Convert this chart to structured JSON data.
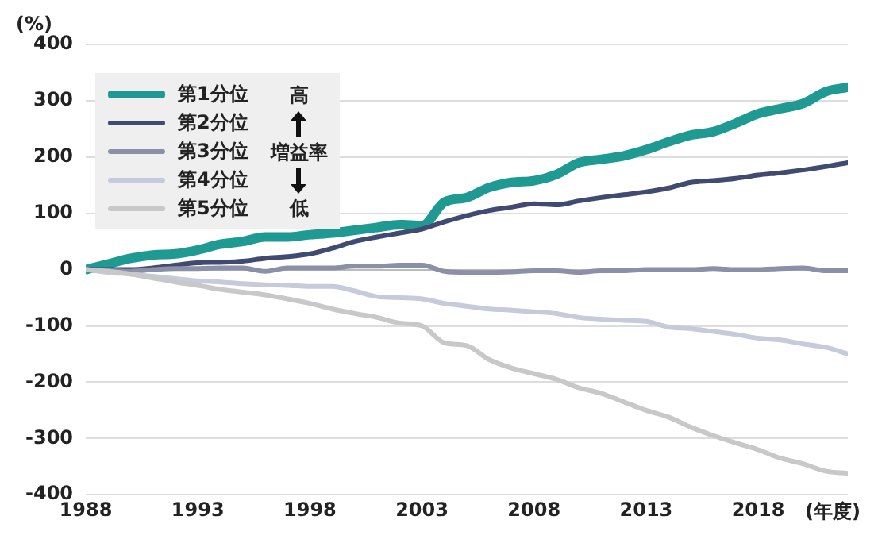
{
  "chart_data": {
    "type": "line",
    "ylabel": "(%)",
    "xlabel": "(年度)",
    "x": [
      1988,
      1989,
      1990,
      1991,
      1992,
      1993,
      1994,
      1995,
      1996,
      1997,
      1998,
      1999,
      2000,
      2001,
      2002,
      2003,
      2004,
      2005,
      2006,
      2007,
      2008,
      2009,
      2010,
      2011,
      2012,
      2013,
      2014,
      2015,
      2016,
      2017,
      2018,
      2019,
      2020,
      2021,
      2022
    ],
    "xlim": [
      1988,
      2022
    ],
    "xticks": [
      1988,
      1993,
      1998,
      2003,
      2008,
      2013,
      2018
    ],
    "ylim": [
      -400,
      400
    ],
    "yticks": [
      -400,
      -300,
      -200,
      -100,
      0,
      100,
      200,
      300,
      400
    ],
    "grid": "y",
    "legend": "top left",
    "marker": "none",
    "line_style": "solid",
    "annotations": [
      "高",
      "増益率",
      "低"
    ],
    "series": [
      {
        "name": "第1分位",
        "color": "#1f9a93",
        "values": [
          0,
          10,
          20,
          26,
          28,
          35,
          45,
          50,
          58,
          58,
          62,
          65,
          70,
          75,
          80,
          78,
          120,
          128,
          146,
          155,
          158,
          169,
          190,
          196,
          202,
          213,
          227,
          239,
          245,
          260,
          277,
          286,
          295,
          316,
          324
        ]
      },
      {
        "name": "第2分位",
        "color": "#414a70",
        "values": [
          0,
          0,
          0,
          3,
          8,
          12,
          13,
          15,
          20,
          23,
          28,
          38,
          50,
          58,
          65,
          72,
          85,
          96,
          105,
          111,
          117,
          115,
          122,
          128,
          133,
          138,
          145,
          155,
          158,
          162,
          168,
          172,
          177,
          183,
          190
        ]
      },
      {
        "name": "第3分位",
        "color": "#8a90a8",
        "values": [
          0,
          -2,
          -3,
          0,
          2,
          2,
          3,
          3,
          -3,
          3,
          3,
          3,
          6,
          6,
          8,
          8,
          -3,
          -5,
          -5,
          -4,
          -2,
          -2,
          -5,
          -2,
          -2,
          0,
          0,
          0,
          2,
          0,
          0,
          2,
          3,
          -2,
          -2
        ]
      },
      {
        "name": "第4分位",
        "color": "#c5cbdb",
        "values": [
          0,
          -5,
          -8,
          -12,
          -16,
          -20,
          -22,
          -25,
          -27,
          -28,
          -30,
          -30,
          -38,
          -48,
          -50,
          -52,
          -60,
          -65,
          -70,
          -72,
          -75,
          -78,
          -85,
          -88,
          -90,
          -92,
          -102,
          -105,
          -110,
          -115,
          -122,
          -125,
          -132,
          -138,
          -150
        ]
      },
      {
        "name": "第5分位",
        "color": "#c8c8c8",
        "values": [
          0,
          -3,
          -8,
          -15,
          -22,
          -28,
          -35,
          -40,
          -45,
          -52,
          -60,
          -70,
          -78,
          -85,
          -95,
          -100,
          -130,
          -135,
          -160,
          -175,
          -185,
          -195,
          -210,
          -220,
          -235,
          -250,
          -262,
          -280,
          -295,
          -308,
          -320,
          -335,
          -345,
          -358,
          -362
        ]
      }
    ]
  }
}
